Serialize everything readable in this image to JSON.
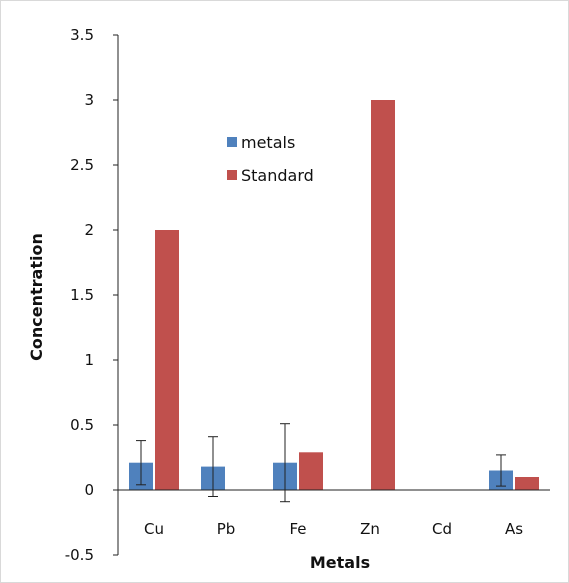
{
  "chart_data": {
    "type": "bar",
    "title": "",
    "xlabel": "Metals",
    "ylabel": "Concentration",
    "categories": [
      "Cu",
      "Pb",
      "Fe",
      "Zn",
      "Cd",
      "As"
    ],
    "ylim": [
      -0.5,
      3.5
    ],
    "y_ticks": [
      "3.5",
      "3",
      "2.5",
      "2",
      "1.5",
      "1",
      "0.5",
      "0",
      "-0.5"
    ],
    "y_tick_values": [
      3.5,
      3,
      2.5,
      2,
      1.5,
      1,
      0.5,
      0,
      -0.5
    ],
    "grid": false,
    "legend_position": "upper-middle",
    "series": [
      {
        "name": "metals",
        "color": "#4f81bd",
        "values": [
          0.21,
          0.18,
          0.21,
          0,
          0,
          0.15
        ],
        "error": [
          0.17,
          0.23,
          0.3,
          0,
          0,
          0.12
        ]
      },
      {
        "name": "Standard",
        "color": "#c0504d",
        "values": [
          2.0,
          0,
          0.29,
          3.0,
          0,
          0.1
        ]
      }
    ]
  }
}
